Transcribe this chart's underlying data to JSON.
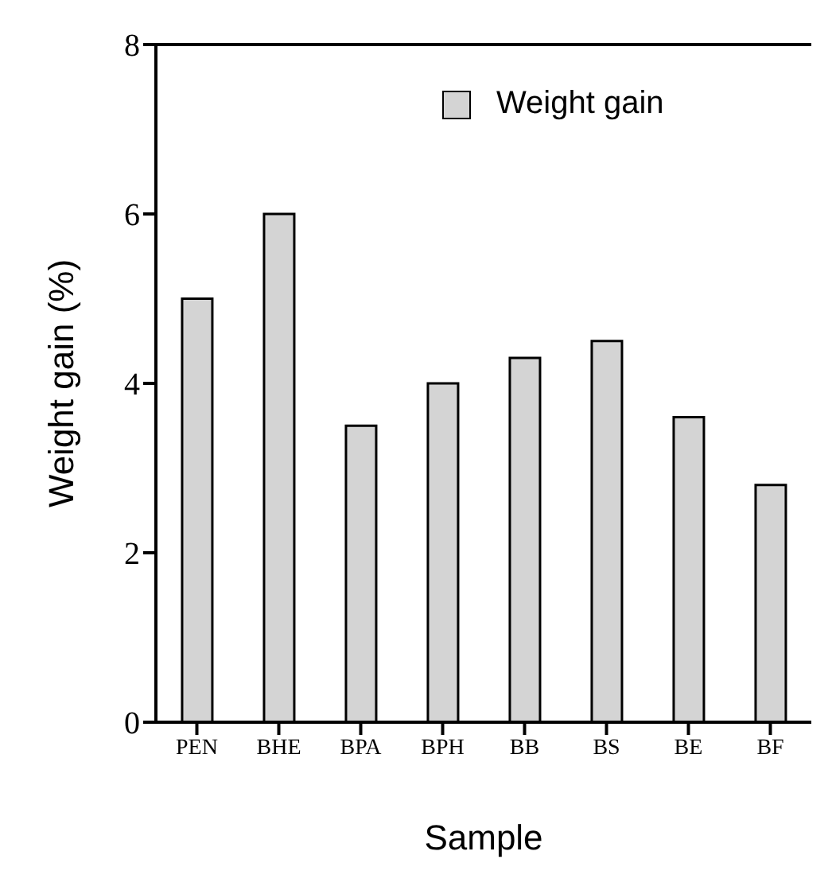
{
  "chart_data": {
    "type": "bar",
    "xlabel": "Sample",
    "ylabel": "Weight gain (%)",
    "categories": [
      "PEN",
      "BHE",
      "BPA",
      "BPH",
      "BB",
      "BS",
      "BE",
      "BF"
    ],
    "series": [
      {
        "name": "Weight gain",
        "color": "#d4d4d4",
        "values": [
          5.0,
          6.0,
          3.5,
          4.0,
          4.3,
          4.5,
          3.6,
          2.8
        ]
      }
    ],
    "ylim": [
      0,
      8
    ],
    "yticks": [
      0,
      2,
      4,
      6,
      8
    ],
    "legend": "top right"
  }
}
